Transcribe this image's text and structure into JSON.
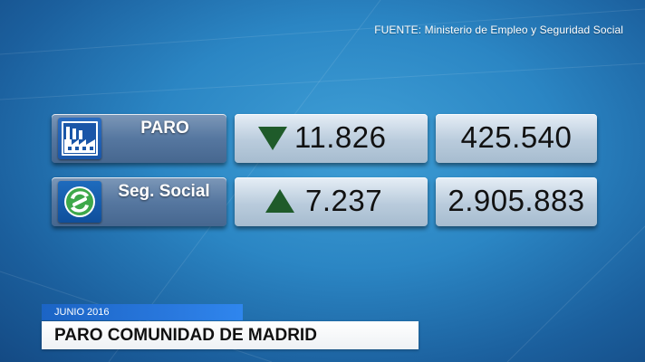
{
  "source": {
    "text": "FUENTE: Ministerio de Empleo y Seguridad Social"
  },
  "rows": [
    {
      "icon": "factory-icon",
      "label": "PARO",
      "change_direction": "down",
      "change_value": "11.826",
      "total_value": "425.540"
    },
    {
      "icon": "social-security-logo-icon",
      "label": "Seg. Social",
      "change_direction": "up",
      "change_value": "7.237",
      "total_value": "2.905.883"
    }
  ],
  "lower_third": {
    "date": "JUNIO 2016",
    "title": "PARO COMUNIDAD DE MADRID"
  },
  "colors": {
    "arrow": "#1f5b2a",
    "date_bar": "#2a7ae0",
    "background": "#2b86c4"
  }
}
